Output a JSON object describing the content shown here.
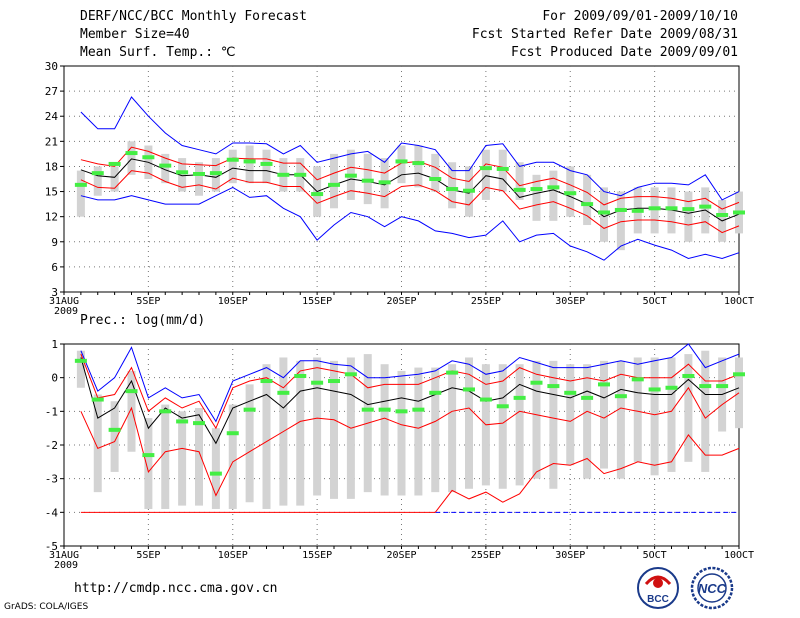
{
  "header": {
    "title": "DERF/NCC/BCC Monthly Forecast",
    "member_size": "Member Size=40",
    "variable": "Mean Surf. Temp.: ℃",
    "period": "For 2009/09/01-2009/10/10",
    "started": "Fcst Started Refer Date 2009/08/31",
    "produced": "Fcst Produced Date 2009/09/01"
  },
  "footer": {
    "url": "http://cmdp.ncc.cma.gov.cn",
    "credit": "GrADS: COLA/IGES",
    "logo_left_text": "BCC",
    "logo_right_text": "NCC"
  },
  "colors": {
    "box": "#d3d3d3",
    "median": "#44ee44",
    "mean": "#000000",
    "spread": "#ff0000",
    "extreme": "#0000ff",
    "grid": "#777777"
  },
  "chart_data": [
    {
      "type": "box-ensemble",
      "title": "",
      "ylabel": "Mean Surf. Temp.: ℃",
      "ylim": [
        3,
        30
      ],
      "yticks": [
        3,
        6,
        9,
        12,
        15,
        18,
        21,
        24,
        27,
        30
      ],
      "x_range": [
        0,
        40
      ],
      "xticks": [
        {
          "day": 0,
          "label": "31AUG",
          "sub": "2009"
        },
        {
          "day": 5,
          "label": "5SEP"
        },
        {
          "day": 10,
          "label": "10SEP"
        },
        {
          "day": 15,
          "label": "15SEP"
        },
        {
          "day": 20,
          "label": "20SEP"
        },
        {
          "day": 25,
          "label": "25SEP"
        },
        {
          "day": 30,
          "label": "30SEP"
        },
        {
          "day": 35,
          "label": "5OCT"
        },
        {
          "day": 40,
          "label": "10OCT"
        }
      ],
      "days": [
        1,
        2,
        3,
        4,
        5,
        6,
        7,
        8,
        9,
        10,
        11,
        12,
        13,
        14,
        15,
        16,
        17,
        18,
        19,
        20,
        21,
        22,
        23,
        24,
        25,
        26,
        27,
        28,
        29,
        30,
        31,
        32,
        33,
        34,
        35,
        36,
        37,
        38,
        39,
        40
      ],
      "box_low": [
        12,
        14.5,
        15,
        17,
        16.5,
        16,
        15,
        14.5,
        15,
        16,
        16,
        16,
        15,
        15,
        12,
        13,
        14,
        13.5,
        13,
        16,
        15.5,
        15,
        13,
        12,
        14,
        15,
        14,
        11.5,
        11.5,
        12,
        11,
        9,
        8,
        10,
        10,
        10,
        9,
        10,
        9,
        10
      ],
      "box_high": [
        17.5,
        18,
        18,
        21,
        20.5,
        19.5,
        19,
        18.5,
        19,
        20,
        20.5,
        20,
        19,
        19,
        18,
        19.5,
        20,
        19.5,
        19,
        20.5,
        20.5,
        19.5,
        18.5,
        18,
        20,
        20,
        18.5,
        17,
        17.5,
        18,
        17,
        15.5,
        15,
        15.5,
        15.5,
        15.5,
        15,
        15.5,
        14,
        15
      ],
      "median": [
        15.8,
        17.2,
        18.3,
        19.6,
        19.1,
        18.1,
        17.3,
        17.1,
        17.2,
        18.8,
        18.6,
        18.3,
        17.0,
        17.0,
        14.7,
        15.8,
        16.9,
        16.3,
        16.1,
        18.6,
        18.4,
        16.5,
        15.3,
        15.1,
        17.8,
        17.7,
        15.2,
        15.3,
        15.5,
        14.8,
        13.5,
        12.5,
        12.8,
        12.7,
        13.0,
        13.0,
        12.9,
        13.2,
        12.2,
        12.5
      ],
      "mean": [
        17.6,
        16.9,
        16.7,
        18.9,
        18.5,
        17.6,
        16.9,
        17.0,
        16.7,
        17.8,
        17.5,
        17.5,
        17.0,
        17.0,
        15.0,
        15.8,
        16.5,
        16.2,
        15.8,
        17.0,
        17.2,
        16.5,
        15.2,
        14.8,
        16.9,
        16.5,
        14.3,
        14.8,
        15.2,
        14.4,
        13.5,
        12.0,
        12.8,
        13.0,
        13.0,
        12.8,
        12.4,
        12.8,
        11.5,
        12.3
      ],
      "upper": [
        18.8,
        18.3,
        18.0,
        20.3,
        19.8,
        19.0,
        18.3,
        18.2,
        18.1,
        19.0,
        18.9,
        18.9,
        18.4,
        18.4,
        16.4,
        17.2,
        17.9,
        17.6,
        17.2,
        18.4,
        18.6,
        17.9,
        16.6,
        16.2,
        18.3,
        17.9,
        15.7,
        16.2,
        16.6,
        15.8,
        14.9,
        13.4,
        14.2,
        14.4,
        14.4,
        14.2,
        13.8,
        14.2,
        12.9,
        13.7
      ],
      "lower": [
        16.4,
        15.5,
        15.4,
        17.5,
        17.2,
        16.2,
        15.5,
        15.8,
        15.3,
        16.6,
        16.1,
        16.1,
        15.6,
        15.6,
        13.6,
        14.4,
        15.1,
        14.8,
        14.4,
        15.6,
        15.8,
        15.1,
        13.8,
        13.4,
        15.5,
        15.1,
        12.9,
        13.4,
        13.8,
        13.0,
        12.1,
        10.6,
        11.4,
        11.6,
        11.6,
        11.4,
        11.0,
        11.4,
        10.1,
        10.9
      ],
      "max": [
        24.5,
        22.5,
        22.5,
        26.3,
        24.0,
        22.0,
        20.5,
        20.0,
        19.5,
        20.8,
        20.8,
        20.7,
        19.5,
        20.5,
        18.5,
        19.0,
        19.5,
        19.8,
        18.5,
        20.8,
        20.5,
        20.0,
        17.5,
        17.5,
        20.5,
        20.7,
        18.0,
        18.5,
        18.5,
        17.5,
        17.0,
        15.0,
        14.5,
        15.5,
        16.0,
        16.0,
        15.8,
        17.0,
        14.0,
        15.0
      ],
      "min": [
        14.5,
        14.0,
        14.0,
        14.5,
        14.0,
        13.5,
        13.5,
        13.5,
        14.5,
        15.5,
        14.3,
        14.5,
        13.0,
        12.0,
        9.2,
        11.0,
        12.5,
        12.0,
        10.8,
        12.0,
        11.5,
        10.3,
        10.0,
        9.5,
        9.8,
        11.5,
        9.0,
        9.8,
        10.0,
        8.5,
        7.8,
        6.8,
        8.5,
        9.3,
        8.6,
        8.0,
        7.0,
        7.5,
        7.0,
        7.7
      ]
    },
    {
      "type": "box-ensemble",
      "title": "Prec.: log(mm/d)",
      "ylabel": "Prec.: log(mm/d)",
      "ylim": [
        -5,
        1
      ],
      "yticks": [
        -5,
        -4,
        -3,
        -2,
        -1,
        0,
        1
      ],
      "x_range": [
        0,
        40
      ],
      "xticks": [
        {
          "day": 0,
          "label": "31AUG",
          "sub": "2009"
        },
        {
          "day": 5,
          "label": "5SEP"
        },
        {
          "day": 10,
          "label": "10SEP"
        },
        {
          "day": 15,
          "label": "15SEP"
        },
        {
          "day": 20,
          "label": "20SEP"
        },
        {
          "day": 25,
          "label": "25SEP"
        },
        {
          "day": 30,
          "label": "30SEP"
        },
        {
          "day": 35,
          "label": "5OCT"
        },
        {
          "day": 40,
          "label": "10OCT"
        }
      ],
      "days": [
        1,
        2,
        3,
        4,
        5,
        6,
        7,
        8,
        9,
        10,
        11,
        12,
        13,
        14,
        15,
        16,
        17,
        18,
        19,
        20,
        21,
        22,
        23,
        24,
        25,
        26,
        27,
        28,
        29,
        30,
        31,
        32,
        33,
        34,
        35,
        36,
        37,
        38,
        39,
        40
      ],
      "box_low": [
        -0.3,
        -3.4,
        -2.8,
        -2.2,
        -3.9,
        -3.9,
        -3.8,
        -3.8,
        -3.9,
        -3.9,
        -3.7,
        -3.9,
        -3.8,
        -3.8,
        -3.5,
        -3.6,
        -3.6,
        -3.4,
        -3.5,
        -3.5,
        -3.5,
        -3.4,
        -3.4,
        -3.3,
        -3.2,
        -3.3,
        -3.2,
        -3.0,
        -3.3,
        -2.6,
        -3.0,
        -2.7,
        -3.0,
        -2.5,
        -2.9,
        -2.8,
        -2.5,
        -2.8,
        -1.6,
        -1.5
      ],
      "box_high": [
        0.8,
        -0.5,
        -0.7,
        0.2,
        -1.2,
        -0.8,
        -1.0,
        -0.9,
        -1.5,
        -0.8,
        -0.2,
        0.4,
        0.6,
        0.5,
        0.6,
        0.5,
        0.6,
        0.7,
        0.4,
        0.2,
        0.3,
        0.3,
        0.4,
        0.6,
        0.4,
        0.4,
        0.4,
        0.5,
        0.5,
        0.4,
        0.4,
        0.5,
        0.5,
        0.6,
        0.6,
        0.6,
        0.7,
        0.8,
        0.6,
        0.6
      ],
      "median": [
        0.5,
        -0.65,
        -1.55,
        -0.4,
        -2.3,
        -1.0,
        -1.3,
        -1.35,
        -2.85,
        -1.65,
        -0.95,
        -0.1,
        -0.45,
        0.05,
        -0.15,
        -0.1,
        0.1,
        -0.95,
        -0.95,
        -1.0,
        -0.95,
        -0.45,
        0.15,
        -0.35,
        -0.65,
        -0.85,
        -0.6,
        -0.15,
        -0.25,
        -0.45,
        -0.6,
        -0.2,
        -0.55,
        -0.05,
        -0.35,
        -0.3,
        0.05,
        -0.25,
        -0.25,
        0.1
      ],
      "mean": [
        0.6,
        -1.2,
        -0.9,
        -0.1,
        -1.5,
        -0.9,
        -1.2,
        -1.1,
        -1.95,
        -0.9,
        -0.7,
        -0.5,
        -0.9,
        -0.4,
        -0.3,
        -0.4,
        -0.5,
        -0.8,
        -0.7,
        -0.6,
        -0.7,
        -0.5,
        -0.3,
        -0.4,
        -0.7,
        -0.6,
        -0.2,
        -0.4,
        -0.5,
        -0.6,
        -0.4,
        -0.6,
        -0.35,
        -0.45,
        -0.5,
        -0.5,
        -0.05,
        -0.5,
        -0.5,
        -0.3
      ],
      "upper": [
        0.7,
        -0.6,
        -0.5,
        0.3,
        -1.0,
        -0.6,
        -0.9,
        -0.7,
        -1.5,
        -0.3,
        -0.1,
        0.0,
        -0.3,
        0.2,
        0.3,
        0.2,
        0.1,
        -0.3,
        -0.2,
        -0.2,
        -0.2,
        0.0,
        0.2,
        0.1,
        -0.2,
        -0.1,
        0.3,
        0.1,
        0.0,
        -0.1,
        0.0,
        -0.1,
        0.1,
        0.0,
        0.0,
        0.0,
        0.4,
        -0.1,
        -0.1,
        0.1
      ],
      "lower": [
        -1.0,
        -2.1,
        -1.9,
        -0.9,
        -2.8,
        -2.2,
        -2.1,
        -2.2,
        -3.5,
        -2.5,
        -2.2,
        -1.9,
        -1.6,
        -1.3,
        -1.2,
        -1.25,
        -1.5,
        -1.35,
        -1.2,
        -1.4,
        -1.5,
        -1.3,
        -1.0,
        -0.9,
        -1.4,
        -1.35,
        -1.0,
        -1.1,
        -1.2,
        -1.3,
        -1.0,
        -1.2,
        -0.9,
        -1.0,
        -1.1,
        -1.0,
        -0.3,
        -1.2,
        -0.8,
        -0.45
      ],
      "max": [
        0.8,
        -0.4,
        0.0,
        0.9,
        -0.6,
        -0.3,
        -0.6,
        -0.5,
        -1.3,
        -0.1,
        0.1,
        0.3,
        0.0,
        0.5,
        0.5,
        0.4,
        0.35,
        0.0,
        0.0,
        0.05,
        0.1,
        0.2,
        0.5,
        0.4,
        0.1,
        0.2,
        0.6,
        0.45,
        0.3,
        0.3,
        0.3,
        0.4,
        0.5,
        0.4,
        0.5,
        0.6,
        1.0,
        0.3,
        0.5,
        0.7
      ],
      "min": [
        -4.0,
        -4.0,
        -4.0,
        -4.0,
        -4.0,
        -4.0,
        -4.0,
        -4.0,
        -4.0,
        -4.0,
        -4.0,
        -4.0,
        -4.0,
        -4.0,
        -4.0,
        -4.0,
        -4.0,
        -4.0,
        -4.0,
        -4.0,
        -4.0,
        -4.0,
        -3.35,
        -3.6,
        -3.4,
        -3.7,
        -3.45,
        -2.8,
        -2.55,
        -2.6,
        -2.4,
        -2.85,
        -2.7,
        -2.5,
        -2.6,
        -2.5,
        -1.7,
        -2.3,
        -2.3,
        -2.1
      ],
      "min_floor_color_switch_day": 22
    }
  ]
}
